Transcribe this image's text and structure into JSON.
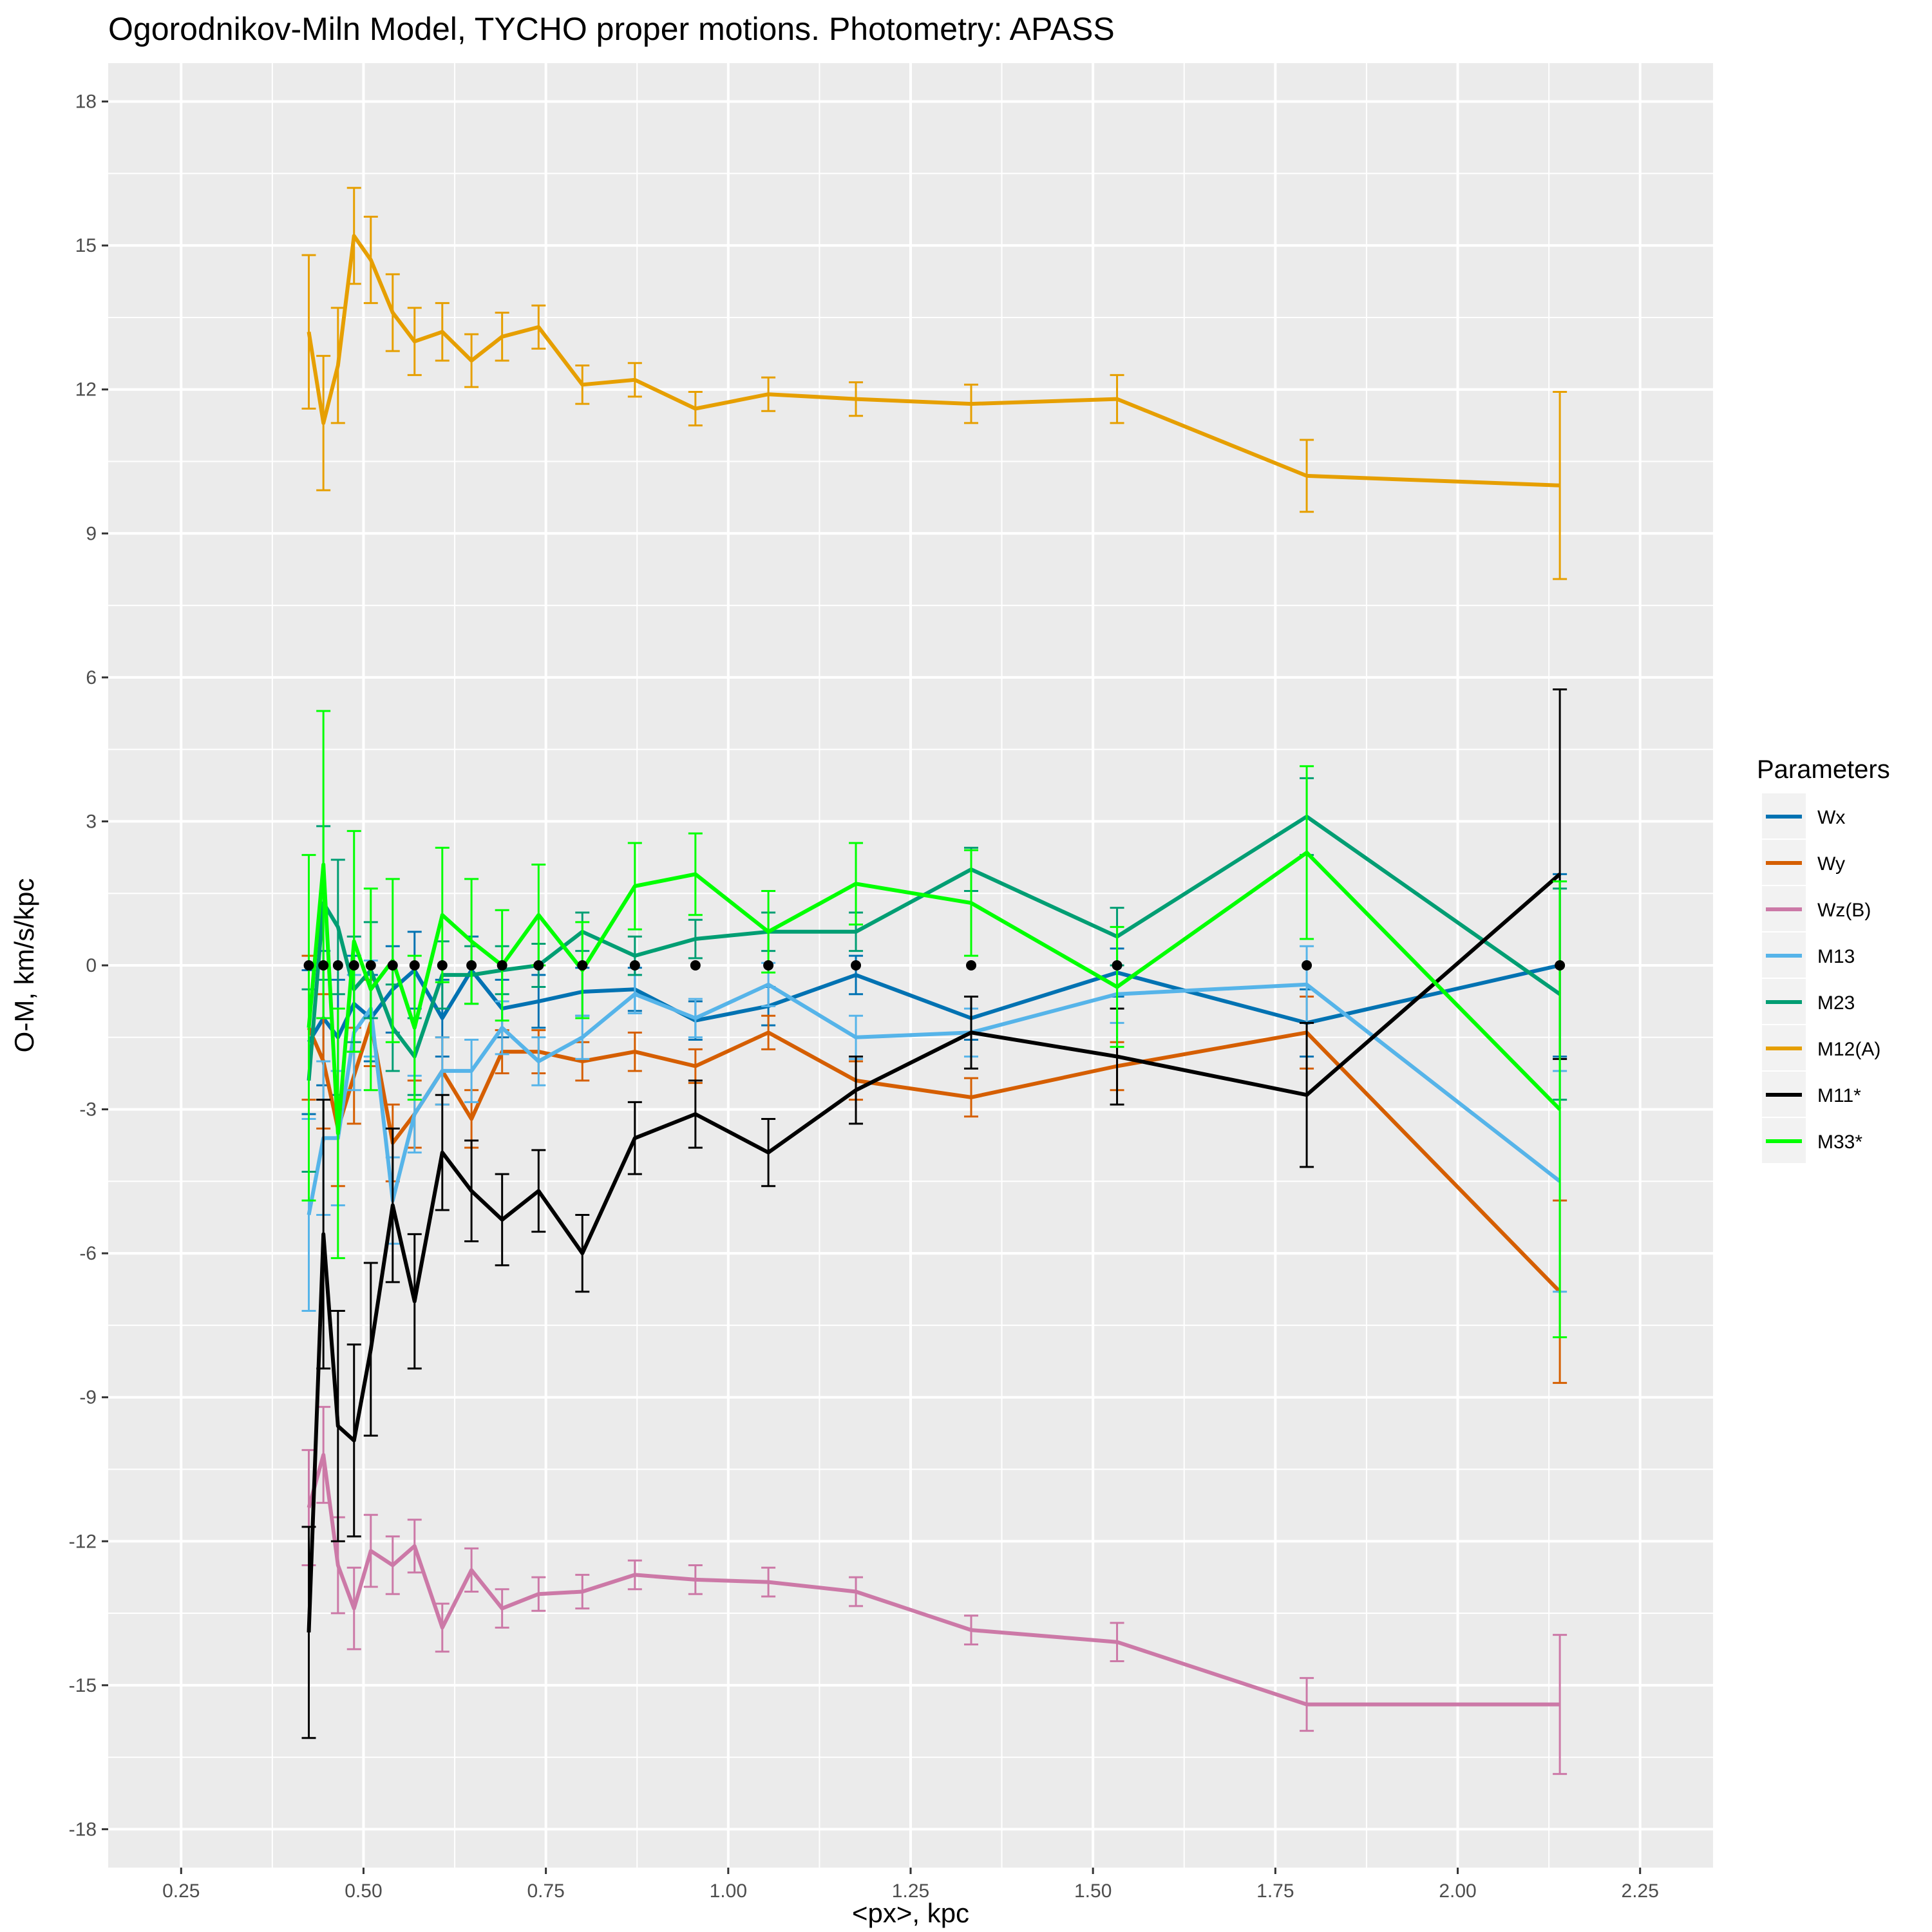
{
  "chart_data": {
    "type": "line",
    "title": "Ogorodnikov-Miln Model, TYCHO proper motions. Photometry: APASS",
    "xlabel": "<px>, kpc",
    "ylabel": "O-M, km/s/kpc",
    "xlim": [
      0.15,
      2.35
    ],
    "ylim": [
      -18.8,
      18.8
    ],
    "xticks": [
      0.25,
      0.5,
      0.75,
      1.0,
      1.25,
      1.5,
      1.75,
      2.0,
      2.25
    ],
    "xtick_labels": [
      "0.25",
      "0.50",
      "0.75",
      "1.00",
      "1.25",
      "1.50",
      "1.75",
      "2.00",
      "2.25"
    ],
    "yticks": [
      -18,
      -15,
      -12,
      -9,
      -6,
      -3,
      0,
      3,
      6,
      9,
      12,
      15,
      18
    ],
    "ytick_labels": [
      "-18",
      "-15",
      "-12",
      "-9",
      "-6",
      "-3",
      "0",
      "3",
      "6",
      "9",
      "12",
      "15",
      "18"
    ],
    "grid": true,
    "background": "#ebebeb",
    "legend_title": "Parameters",
    "legend_position": "right",
    "x": [
      0.425,
      0.445,
      0.465,
      0.487,
      0.51,
      0.54,
      0.57,
      0.608,
      0.648,
      0.69,
      0.74,
      0.8,
      0.872,
      0.955,
      1.055,
      1.175,
      1.333,
      1.533,
      1.793,
      2.14
    ],
    "zero_points": {
      "x": [
        0.425,
        0.445,
        0.465,
        0.487,
        0.51,
        0.54,
        0.57,
        0.608,
        0.648,
        0.69,
        0.74,
        0.8,
        0.872,
        0.955,
        1.055,
        1.175,
        1.333,
        1.533,
        1.793,
        2.14
      ],
      "y": 0,
      "color": "#000000"
    },
    "series": [
      {
        "name": "Wx",
        "color": "#0072b2",
        "values": [
          -1.6,
          -1.1,
          -1.5,
          -0.8,
          -1.1,
          -0.5,
          -0.1,
          -1.1,
          -0.1,
          -0.9,
          -0.75,
          -0.55,
          -0.5,
          -1.15,
          -0.85,
          -0.2,
          -1.1,
          -0.15,
          -1.2,
          0.0
        ],
        "errors": [
          1.5,
          1.4,
          1.2,
          1.0,
          0.9,
          0.9,
          0.8,
          0.8,
          0.7,
          0.6,
          0.55,
          0.5,
          0.45,
          0.4,
          0.4,
          0.4,
          0.45,
          0.5,
          0.7,
          1.9
        ]
      },
      {
        "name": "Wy",
        "color": "#d55e00",
        "values": [
          -1.3,
          -2.0,
          -3.4,
          -2.3,
          -1.2,
          -3.7,
          -3.1,
          -2.2,
          -3.2,
          -1.8,
          -1.8,
          -2.0,
          -1.8,
          -2.1,
          -1.4,
          -2.4,
          -2.75,
          -2.1,
          -1.4,
          -6.8
        ],
        "errors": [
          1.5,
          1.4,
          1.2,
          1.0,
          0.9,
          0.8,
          0.7,
          0.7,
          0.6,
          0.45,
          0.45,
          0.4,
          0.4,
          0.35,
          0.35,
          0.4,
          0.4,
          0.5,
          0.75,
          1.9
        ]
      },
      {
        "name": "Wz(B)",
        "color": "#cc79a7",
        "values": [
          -11.3,
          -10.2,
          -12.5,
          -13.4,
          -12.2,
          -12.5,
          -12.1,
          -13.8,
          -12.6,
          -13.4,
          -13.1,
          -13.05,
          -12.7,
          -12.8,
          -12.85,
          -13.05,
          -13.85,
          -14.1,
          -15.4,
          -15.4
        ],
        "errors": [
          1.2,
          1.0,
          1.0,
          0.85,
          0.75,
          0.6,
          0.55,
          0.5,
          0.45,
          0.4,
          0.35,
          0.35,
          0.3,
          0.3,
          0.3,
          0.3,
          0.3,
          0.4,
          0.55,
          1.45
        ]
      },
      {
        "name": "M13",
        "color": "#56b4e9",
        "values": [
          -5.2,
          -3.6,
          -3.6,
          -1.4,
          -0.9,
          -4.9,
          -3.1,
          -2.2,
          -2.2,
          -1.3,
          -2.0,
          -1.5,
          -0.6,
          -1.1,
          -0.4,
          -1.5,
          -1.4,
          -0.6,
          -0.4,
          -4.5
        ],
        "errors": [
          2.0,
          1.6,
          1.4,
          1.2,
          1.0,
          0.9,
          0.8,
          0.7,
          0.65,
          0.55,
          0.5,
          0.45,
          0.4,
          0.4,
          0.45,
          0.45,
          0.5,
          0.6,
          0.8,
          2.3
        ]
      },
      {
        "name": "M23",
        "color": "#009e73",
        "values": [
          -2.4,
          1.3,
          0.8,
          -0.5,
          -0.1,
          -1.3,
          -1.9,
          -0.2,
          -0.2,
          -0.1,
          0.0,
          0.7,
          0.2,
          0.55,
          0.7,
          0.7,
          2.0,
          0.6,
          3.1,
          -0.6
        ],
        "errors": [
          1.9,
          1.6,
          1.4,
          1.1,
          1.0,
          0.9,
          0.8,
          0.7,
          0.6,
          0.5,
          0.45,
          0.4,
          0.4,
          0.4,
          0.4,
          0.4,
          0.45,
          0.6,
          0.8,
          2.2
        ]
      },
      {
        "name": "M12(A)",
        "color": "#e69f00",
        "values": [
          13.2,
          11.3,
          12.5,
          15.2,
          14.7,
          13.6,
          13.0,
          13.2,
          12.6,
          13.1,
          13.3,
          12.1,
          12.2,
          11.6,
          11.9,
          11.8,
          11.7,
          11.8,
          10.2,
          10.0
        ],
        "errors": [
          1.6,
          1.4,
          1.2,
          1.0,
          0.9,
          0.8,
          0.7,
          0.6,
          0.55,
          0.5,
          0.45,
          0.4,
          0.35,
          0.35,
          0.35,
          0.35,
          0.4,
          0.5,
          0.75,
          1.95
        ]
      },
      {
        "name": "M11*",
        "color": "#000000",
        "values": [
          -13.9,
          -5.6,
          -9.6,
          -9.9,
          -8.0,
          -5.0,
          -7.0,
          -3.9,
          -4.7,
          -5.3,
          -4.7,
          -6.0,
          -3.6,
          -3.1,
          -3.9,
          -2.6,
          -1.4,
          -1.9,
          -2.7,
          1.9
        ],
        "errors": [
          2.2,
          2.8,
          2.4,
          2.0,
          1.8,
          1.6,
          1.4,
          1.2,
          1.05,
          0.95,
          0.85,
          0.8,
          0.75,
          0.7,
          0.7,
          0.7,
          0.75,
          1.0,
          1.5,
          3.85
        ]
      },
      {
        "name": "M33*",
        "color": "#00ff00",
        "values": [
          -1.3,
          2.1,
          -3.5,
          0.5,
          -0.5,
          0.1,
          -1.3,
          1.05,
          0.5,
          0.0,
          1.05,
          -0.1,
          1.65,
          1.9,
          0.7,
          1.7,
          1.3,
          -0.45,
          2.35,
          -3.0
        ],
        "errors": [
          3.6,
          3.2,
          2.6,
          2.3,
          2.1,
          1.7,
          1.5,
          1.4,
          1.3,
          1.15,
          1.05,
          1.0,
          0.9,
          0.85,
          0.85,
          0.85,
          1.1,
          1.25,
          1.8,
          4.75
        ]
      }
    ]
  }
}
